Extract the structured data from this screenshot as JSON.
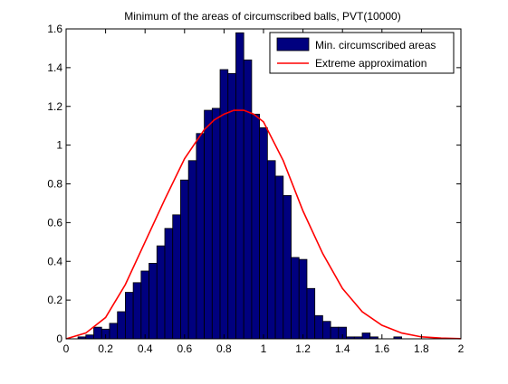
{
  "chart_data": {
    "type": "bar",
    "title": "Minimum of the areas of circumscribed balls, PVT(10000)",
    "xlabel": "",
    "ylabel": "",
    "xlim": [
      0,
      2
    ],
    "ylim": [
      0,
      1.6
    ],
    "xticks": [
      "0",
      "0.2",
      "0.4",
      "0.6",
      "0.8",
      "1",
      "1.2",
      "1.4",
      "1.6",
      "1.8",
      "2"
    ],
    "yticks": [
      "0",
      "0.2",
      "0.4",
      "0.6",
      "0.8",
      "1",
      "1.2",
      "1.4",
      "1.6"
    ],
    "bin_width": 0.04,
    "histogram": {
      "name": "Min. circumscribed areas",
      "color": "#00007f",
      "bin_centers": [
        0.08,
        0.12,
        0.16,
        0.2,
        0.24,
        0.28,
        0.32,
        0.36,
        0.4,
        0.44,
        0.48,
        0.52,
        0.56,
        0.6,
        0.64,
        0.68,
        0.72,
        0.76,
        0.8,
        0.84,
        0.88,
        0.92,
        0.96,
        1.0,
        1.04,
        1.08,
        1.12,
        1.16,
        1.2,
        1.24,
        1.28,
        1.32,
        1.36,
        1.4,
        1.44,
        1.48,
        1.52,
        1.56,
        1.6,
        1.64,
        1.68,
        1.72
      ],
      "values": [
        0.01,
        0.02,
        0.06,
        0.05,
        0.08,
        0.14,
        0.24,
        0.29,
        0.35,
        0.39,
        0.48,
        0.57,
        0.64,
        0.82,
        0.92,
        1.06,
        1.18,
        1.19,
        1.39,
        1.37,
        1.58,
        1.44,
        1.16,
        1.09,
        0.92,
        0.84,
        0.74,
        0.42,
        0.41,
        0.26,
        0.12,
        0.09,
        0.06,
        0.06,
        0.01,
        0.01,
        0.03,
        0.01,
        0,
        0,
        0.01,
        0
      ]
    },
    "curve": {
      "name": "Extreme approximation",
      "color": "#ff0000",
      "x": [
        0,
        0.1,
        0.2,
        0.3,
        0.4,
        0.5,
        0.6,
        0.7,
        0.75,
        0.8,
        0.85,
        0.88,
        0.9,
        0.95,
        1.0,
        1.1,
        1.2,
        1.3,
        1.4,
        1.5,
        1.6,
        1.7,
        1.8,
        1.9,
        2.0
      ],
      "y": [
        0.0,
        0.03,
        0.11,
        0.28,
        0.5,
        0.72,
        0.93,
        1.08,
        1.13,
        1.16,
        1.18,
        1.18,
        1.18,
        1.16,
        1.12,
        0.92,
        0.66,
        0.44,
        0.26,
        0.14,
        0.07,
        0.03,
        0.01,
        0.004,
        0.001
      ]
    },
    "legend_position": "top-right",
    "grid": false
  }
}
